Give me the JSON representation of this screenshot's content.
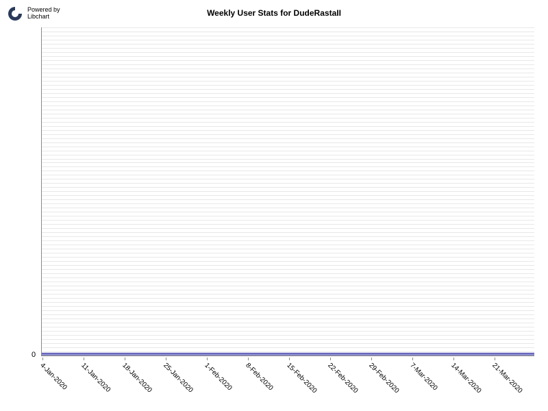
{
  "branding": {
    "powered_by": "Powered by",
    "libname": "Libchart",
    "icon_color_outer": "#2a3a5a",
    "icon_color_inner": "#ffffff"
  },
  "chart": {
    "type": "line",
    "title": "Weekly User Stats for DudeRastaII",
    "title_fontsize": 12,
    "title_weight": "bold",
    "background_color": "#ffffff",
    "plot_background": "#ffffff",
    "grid_color": "#e8e8e8",
    "grid_line_count": 80,
    "axis_color": "#888888",
    "fill_color": "#8888cc",
    "line_color": "#4444aa",
    "y": {
      "ticks": [
        0
      ],
      "tick_labels": [
        "0"
      ],
      "fontsize": 11
    },
    "x": {
      "labels": [
        "4-Jan-2020",
        "11-Jan-2020",
        "18-Jan-2020",
        "25-Jan-2020",
        "1-Feb-2020",
        "8-Feb-2020",
        "15-Feb-2020",
        "22-Feb-2020",
        "29-Feb-2020",
        "7-Mar-2020",
        "14-Mar-2020",
        "21-Mar-2020"
      ],
      "fontsize": 10,
      "rotation_deg": 45
    },
    "data_values": [
      0,
      0,
      0,
      0,
      0,
      0,
      0,
      0,
      0,
      0,
      0,
      0
    ]
  }
}
